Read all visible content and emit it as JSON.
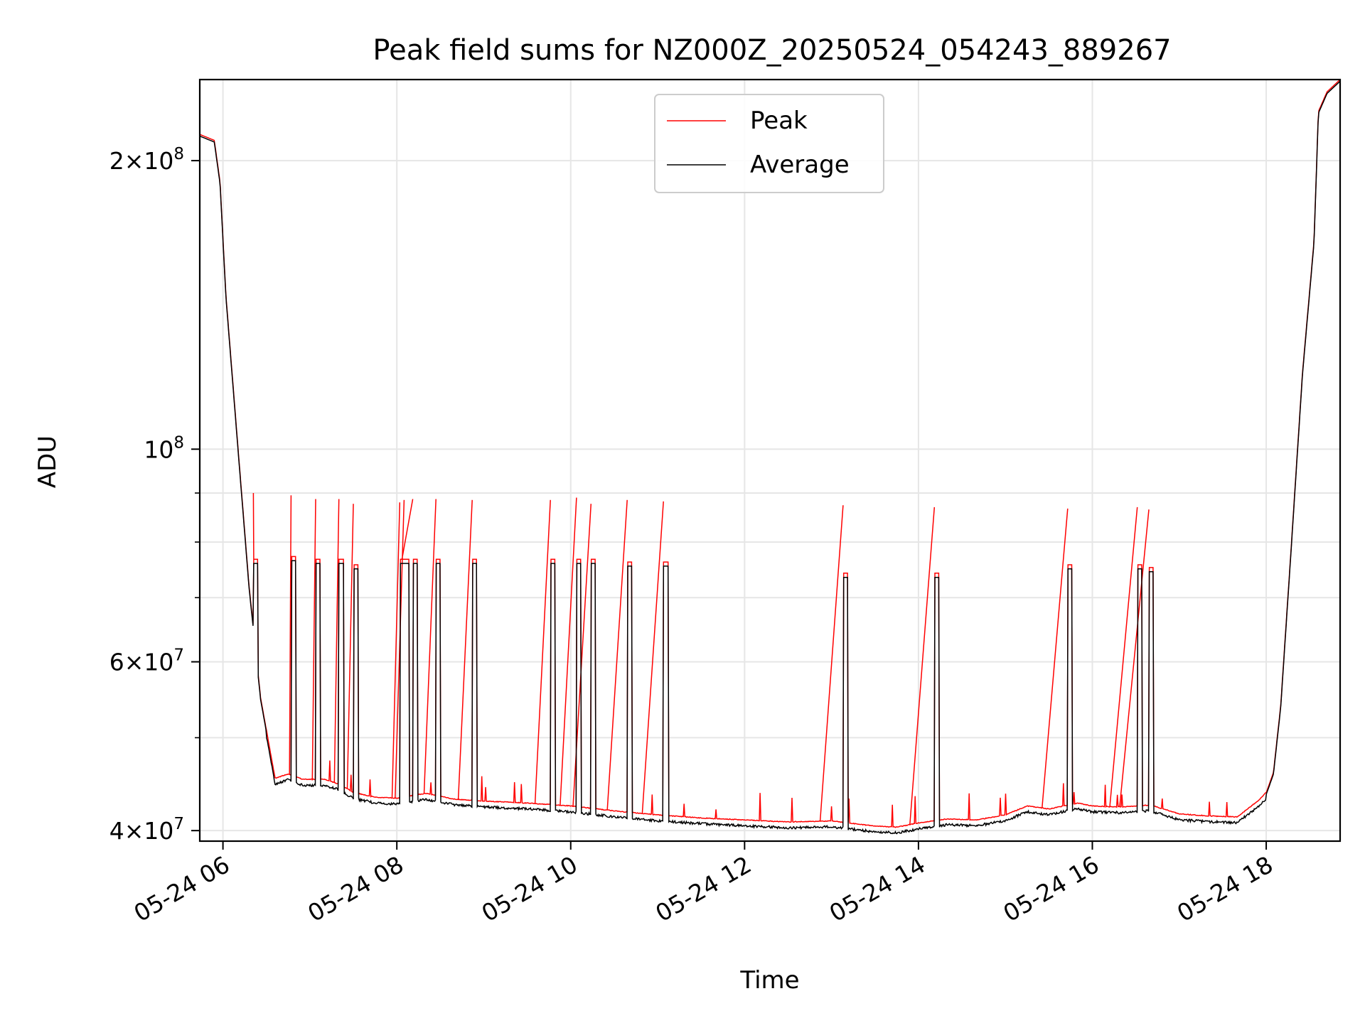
{
  "chart_data": {
    "type": "line",
    "title": "Peak field sums for NZ000Z_20250524_054243_889267",
    "xlabel": "Time",
    "ylabel": "ADU",
    "xaxis": {
      "type": "time",
      "range": [
        "2025-05-24 05:44",
        "2025-05-24 18:51"
      ],
      "ticks": [
        "05-24 06",
        "05-24 08",
        "05-24 10",
        "05-24 12",
        "05-24 14",
        "05-24 16",
        "05-24 18"
      ],
      "tick_hours": [
        6,
        8,
        10,
        12,
        14,
        16,
        18
      ]
    },
    "yaxis": {
      "scale": "log",
      "range": [
        39000000,
        243000000
      ],
      "major_ticks": [
        {
          "value": 40000000,
          "mantissa": "4",
          "exponent": "7"
        },
        {
          "value": 60000000,
          "mantissa": "6",
          "exponent": "7"
        },
        {
          "value": 100000000,
          "mantissa": "",
          "exponent": "8"
        },
        {
          "value": 200000000,
          "mantissa": "2",
          "exponent": "8"
        }
      ],
      "minor_ticks": [
        50000000,
        70000000,
        80000000,
        90000000
      ]
    },
    "grid": true,
    "legend_position": "upper-center",
    "series": [
      {
        "name": "Peak",
        "color": "#ff0000",
        "baseline": [
          [
            "05:44",
            213000000
          ],
          [
            "05:54",
            210000000
          ],
          [
            "05:58",
            190000000
          ],
          [
            "06:02",
            145000000
          ],
          [
            "06:10",
            102000000
          ],
          [
            "06:18",
            72000000
          ],
          [
            "06:26",
            55000000
          ],
          [
            "06:33",
            48000000
          ],
          [
            "06:36",
            45300000
          ],
          [
            "06:45",
            45800000
          ],
          [
            "06:55",
            45200000
          ],
          [
            "07:10",
            45200000
          ],
          [
            "07:20",
            44700000
          ],
          [
            "07:30",
            43800000
          ],
          [
            "07:45",
            43300000
          ],
          [
            "08:00",
            43200000
          ],
          [
            "08:20",
            43700000
          ],
          [
            "08:40",
            43100000
          ],
          [
            "09:00",
            42900000
          ],
          [
            "09:30",
            42700000
          ],
          [
            "10:00",
            42400000
          ],
          [
            "10:30",
            41900000
          ],
          [
            "11:00",
            41500000
          ],
          [
            "11:30",
            41200000
          ],
          [
            "12:00",
            41000000
          ],
          [
            "12:30",
            40800000
          ],
          [
            "13:00",
            40900000
          ],
          [
            "13:30",
            40400000
          ],
          [
            "13:45",
            40300000
          ],
          [
            "14:00",
            40700000
          ],
          [
            "14:20",
            41100000
          ],
          [
            "14:40",
            41000000
          ],
          [
            "15:00",
            41500000
          ],
          [
            "15:15",
            42400000
          ],
          [
            "15:30",
            42100000
          ],
          [
            "15:50",
            42700000
          ],
          [
            "16:00",
            42400000
          ],
          [
            "16:20",
            42300000
          ],
          [
            "16:40",
            42500000
          ],
          [
            "17:00",
            41600000
          ],
          [
            "17:20",
            41400000
          ],
          [
            "17:40",
            41300000
          ],
          [
            "17:55",
            43000000
          ],
          [
            "18:00",
            43800000
          ],
          [
            "18:05",
            46000000
          ],
          [
            "18:10",
            54000000
          ],
          [
            "18:17",
            78000000
          ],
          [
            "18:25",
            120000000
          ],
          [
            "18:33",
            165000000
          ],
          [
            "18:36",
            225000000
          ],
          [
            "18:42",
            236000000
          ],
          [
            "18:51",
            243000000
          ]
        ],
        "spikes": [
          [
            "06:21",
            90000000
          ],
          [
            "06:47",
            89500000
          ],
          [
            "07:04",
            88700000
          ],
          [
            "07:20",
            88700000
          ],
          [
            "07:30",
            87700000
          ],
          [
            "08:02",
            88000000
          ],
          [
            "08:05",
            88500000
          ],
          [
            "08:11",
            88700000
          ],
          [
            "08:27",
            88700000
          ],
          [
            "08:52",
            88500000
          ],
          [
            "09:46",
            88500000
          ],
          [
            "10:04",
            89000000
          ],
          [
            "10:14",
            87700000
          ],
          [
            "10:39",
            88500000
          ],
          [
            "11:04",
            88200000
          ],
          [
            "13:08",
            87400000
          ],
          [
            "14:11",
            87000000
          ],
          [
            "15:43",
            86700000
          ],
          [
            "16:31",
            87000000
          ],
          [
            "16:39",
            86500000
          ]
        ]
      },
      {
        "name": "Average",
        "color": "#000000",
        "plateaus": [
          [
            "06:21",
            76000000
          ],
          [
            "06:47",
            76500000
          ],
          [
            "07:04",
            76000000
          ],
          [
            "07:20",
            76000000
          ],
          [
            "07:30",
            75000000
          ],
          [
            "08:02",
            76000000
          ],
          [
            "08:05",
            76000000
          ],
          [
            "08:11",
            76000000
          ],
          [
            "08:27",
            76000000
          ],
          [
            "08:52",
            76000000
          ],
          [
            "09:46",
            76000000
          ],
          [
            "10:04",
            76000000
          ],
          [
            "10:14",
            76000000
          ],
          [
            "10:39",
            75500000
          ],
          [
            "11:04",
            75500000
          ],
          [
            "13:08",
            73500000
          ],
          [
            "14:11",
            73500000
          ],
          [
            "15:43",
            75000000
          ],
          [
            "16:31",
            75000000
          ],
          [
            "16:39",
            74500000
          ]
        ]
      }
    ]
  }
}
